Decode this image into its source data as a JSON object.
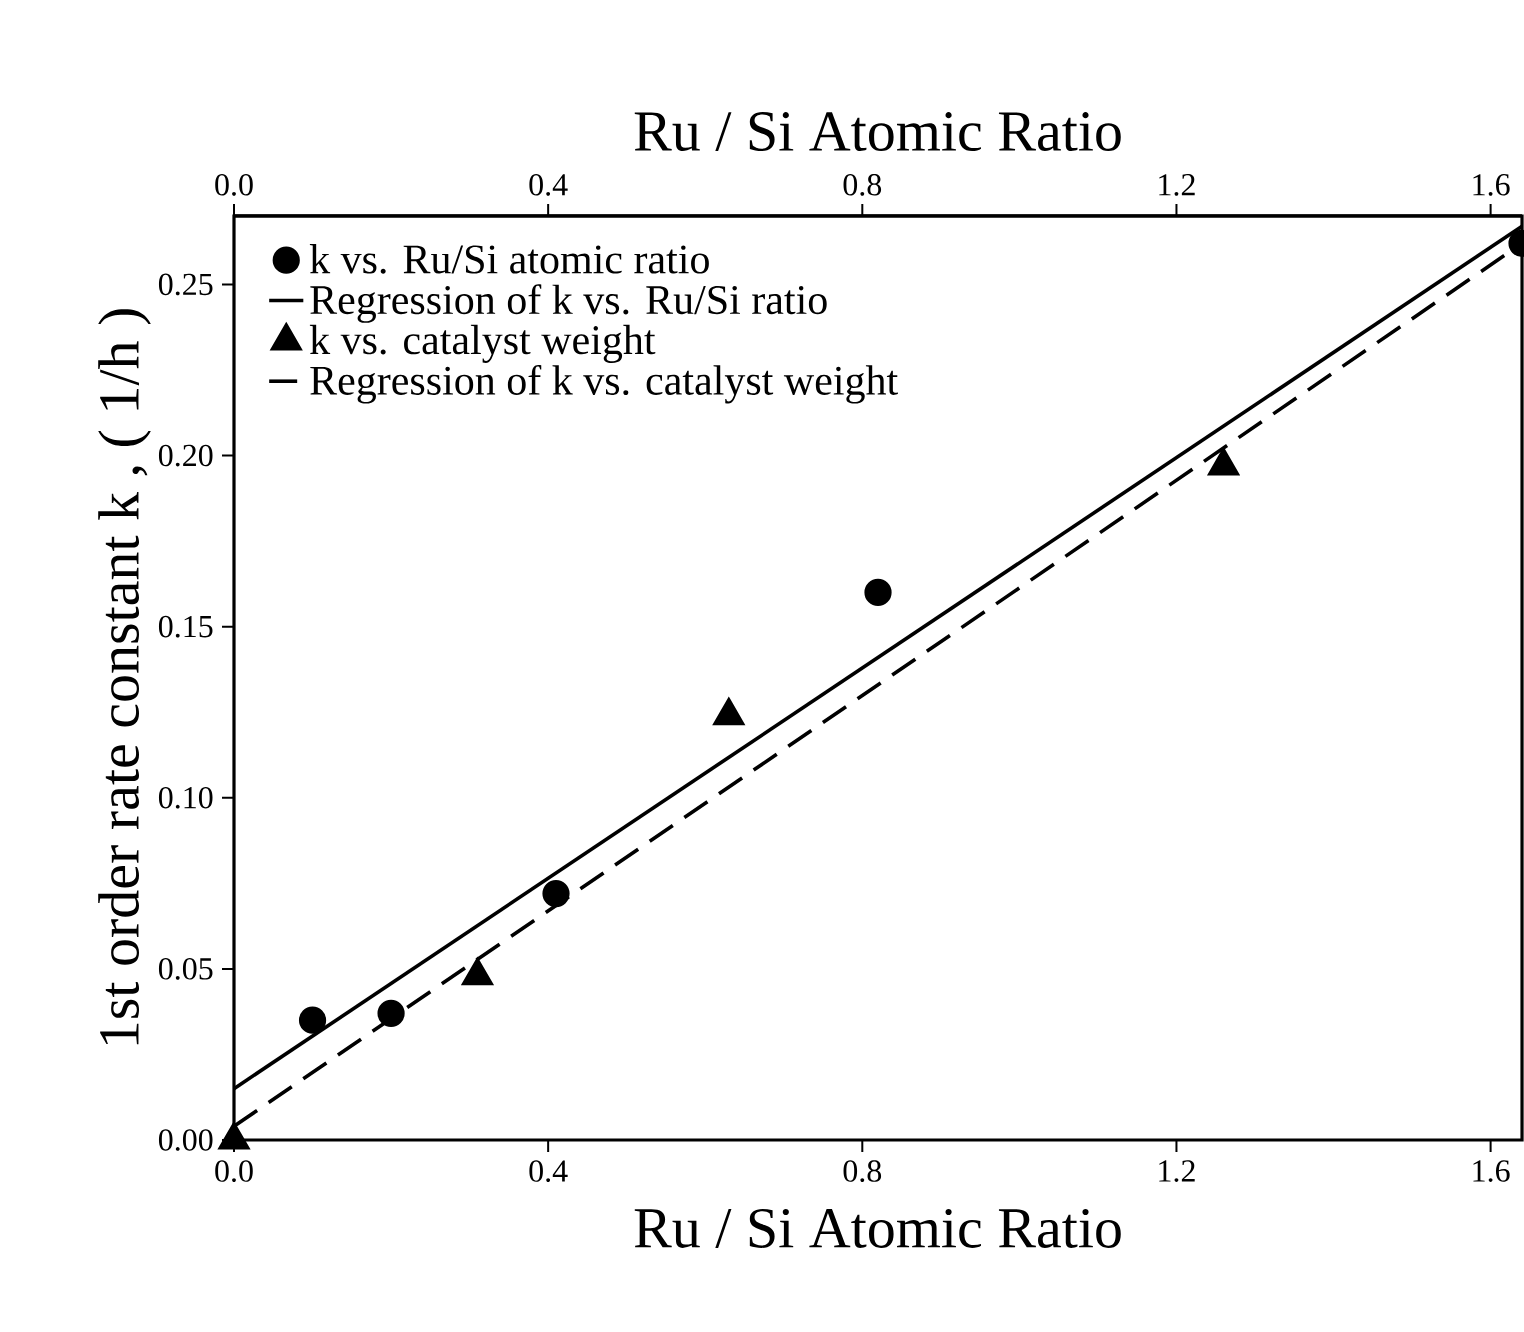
{
  "chart_data": {
    "type": "scatter",
    "xlabel": "Ru / Si   Atomic   Ratio",
    "x2label": "Ru / Si   Atomic   Ratio",
    "ylabel": "1st order rate constant k , ( 1/h )",
    "xlim": [
      0,
      1.64
    ],
    "xticks": [
      {
        "value": 0,
        "label": "0.0"
      },
      0.4,
      0.8,
      1.2,
      1.6
    ],
    "x2lim": [
      0,
      1.64
    ],
    "x2ticks": [
      {
        "value": 0,
        "label": "0.0"
      },
      0.4,
      0.8,
      1.2,
      1.6
    ],
    "ylim": [
      0,
      0.27
    ],
    "yticks": [
      {
        "value": 0,
        "label": "0.00"
      },
      0.05,
      {
        "value": 0.1,
        "label": "0.10"
      },
      0.15,
      {
        "value": 0.2,
        "label": "0.20"
      },
      0.25
    ],
    "legend": "top left",
    "series": [
      {
        "name": "k vs. Ru/Si atomic ratio",
        "marker": "circle",
        "color": "#000000",
        "x": [
          0.1,
          0.2,
          0.41,
          0.82,
          1.64
        ],
        "values": [
          0.035,
          0.037,
          0.072,
          0.16,
          0.262
        ]
      },
      {
        "name": "Regression of k vs. Ru/Si ratio",
        "type": "line",
        "line_style": "solid",
        "color": "#000000",
        "x": [
          0,
          1.64
        ],
        "values": [
          0.015,
          0.267
        ]
      },
      {
        "name": "k vs. catalyst weight",
        "marker": "triangle",
        "color": "#000000",
        "x": [
          0,
          0.31,
          0.63,
          1.26
        ],
        "values": [
          0,
          0.048,
          0.124,
          0.197
        ]
      },
      {
        "name": "Regression of k vs. catalyst weight",
        "type": "line",
        "line_style": "dashed",
        "color": "#000000",
        "x": [
          0,
          1.64
        ],
        "values": [
          0.004,
          0.262
        ]
      }
    ]
  }
}
